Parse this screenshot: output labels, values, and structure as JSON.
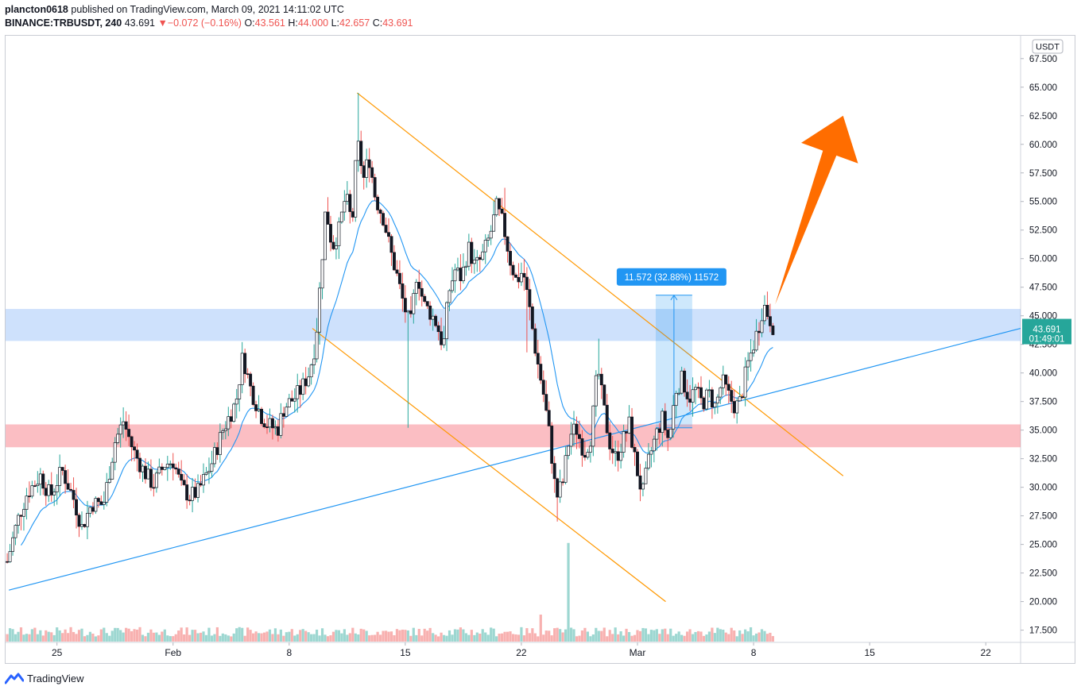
{
  "header": {
    "user": "plancton0618",
    "published": "published on TradingView.com, March 09, 2021 14:11:02 UTC",
    "symbol": "BINANCE:TRBUSDT, 240",
    "last": "43.691",
    "arrow": "▼",
    "change": "−0.072 (−0.16%)",
    "o_label": "O:",
    "o": "43.561",
    "h_label": "H:",
    "h": "44.000",
    "l_label": "L:",
    "l": "42.657",
    "c_label": "C:",
    "c": "43.691"
  },
  "footer": {
    "brand": "TradingView"
  },
  "colors": {
    "up": "#26a69a",
    "down": "#ef5350",
    "ma": "#2196f3",
    "orange": "#ff9800",
    "arrow": "#ff6d00",
    "blue_zone": "rgba(33,120,243,0.22)",
    "red_zone": "rgba(242,54,69,0.32)"
  },
  "chart_data": {
    "type": "candlestick",
    "symbol": "BINANCE:TRBUSDT",
    "interval": "240",
    "currency": "USDT",
    "y_ticks": [
      "67.500",
      "65.000",
      "62.500",
      "60.000",
      "57.500",
      "55.000",
      "52.500",
      "50.000",
      "47.500",
      "45.000",
      "42.500",
      "40.000",
      "37.500",
      "35.000",
      "32.500",
      "30.000",
      "27.500",
      "25.000",
      "22.500",
      "20.000",
      "17.500"
    ],
    "x_ticks": [
      {
        "label": "25",
        "day": 25
      },
      {
        "label": "Feb",
        "day": 32
      },
      {
        "label": "8",
        "day": 39
      },
      {
        "label": "15",
        "day": 46
      },
      {
        "label": "22",
        "day": 53
      },
      {
        "label": "Mar",
        "day": 60
      },
      {
        "label": "8",
        "day": 67
      },
      {
        "label": "15",
        "day": 74
      },
      {
        "label": "22",
        "day": 81
      }
    ],
    "ylim": [
      16.5,
      69.5
    ],
    "xlim_day": [
      21.9,
      83.1
    ],
    "price_label": {
      "value": "43.691",
      "countdown": "01:49:01",
      "y": 43.691
    },
    "measure": {
      "from_day": 61.1,
      "to_day": 63.3,
      "low": 35.2,
      "high": 46.8,
      "label": "11.572 (32.88%) 11572"
    },
    "zones": [
      {
        "name": "resistance",
        "low": 42.8,
        "high": 45.6
      },
      {
        "name": "support",
        "low": 33.5,
        "high": 35.5
      }
    ],
    "lines": [
      {
        "name": "channel-top",
        "x1": 43.1,
        "y1": 64.5,
        "x2": 72.4,
        "y2": 31.0
      },
      {
        "name": "channel-bottom",
        "x1": 40.4,
        "y1": 43.9,
        "x2": 61.7,
        "y2": 20.0
      },
      {
        "name": "trendline",
        "x1": 22.1,
        "y1": 21.0,
        "x2": 83.1,
        "y2": 43.9
      }
    ],
    "big_arrow": {
      "from_day": 68.3,
      "from_y": 46.0,
      "to_day": 72.4,
      "to_y": 62.5
    },
    "anchors": [
      {
        "d": 22.0,
        "p": 23.5
      },
      {
        "d": 22.6,
        "p": 27.0
      },
      {
        "d": 23.2,
        "p": 29.5
      },
      {
        "d": 24.0,
        "p": 31.0
      },
      {
        "d": 24.6,
        "p": 29.2
      },
      {
        "d": 25.3,
        "p": 31.5
      },
      {
        "d": 26.0,
        "p": 29.0
      },
      {
        "d": 26.5,
        "p": 26.5
      },
      {
        "d": 27.1,
        "p": 28.6
      },
      {
        "d": 27.8,
        "p": 28.5
      },
      {
        "d": 28.5,
        "p": 34.0
      },
      {
        "d": 29.0,
        "p": 35.8
      },
      {
        "d": 29.6,
        "p": 33.2
      },
      {
        "d": 30.2,
        "p": 31.5
      },
      {
        "d": 30.8,
        "p": 30.2
      },
      {
        "d": 31.5,
        "p": 32.0
      },
      {
        "d": 32.0,
        "p": 32.3
      },
      {
        "d": 32.5,
        "p": 30.0
      },
      {
        "d": 33.0,
        "p": 29.2
      },
      {
        "d": 33.5,
        "p": 29.6
      },
      {
        "d": 34.3,
        "p": 32.0
      },
      {
        "d": 35.0,
        "p": 35.0
      },
      {
        "d": 35.8,
        "p": 37.5
      },
      {
        "d": 36.2,
        "p": 41.5
      },
      {
        "d": 36.7,
        "p": 38.5
      },
      {
        "d": 37.3,
        "p": 36.3
      },
      {
        "d": 37.7,
        "p": 35.5
      },
      {
        "d": 38.3,
        "p": 35.0
      },
      {
        "d": 38.7,
        "p": 37.0
      },
      {
        "d": 39.3,
        "p": 37.8
      },
      {
        "d": 39.7,
        "p": 38.5
      },
      {
        "d": 40.2,
        "p": 40.0
      },
      {
        "d": 40.6,
        "p": 42.7
      },
      {
        "d": 40.9,
        "p": 48.5
      },
      {
        "d": 41.2,
        "p": 54.5
      },
      {
        "d": 41.6,
        "p": 51.0
      },
      {
        "d": 42.0,
        "p": 52.5
      },
      {
        "d": 42.4,
        "p": 55.5
      },
      {
        "d": 42.8,
        "p": 53.0
      },
      {
        "d": 43.1,
        "p": 60.3
      },
      {
        "d": 43.5,
        "p": 57.0
      },
      {
        "d": 43.8,
        "p": 59.0
      },
      {
        "d": 44.2,
        "p": 55.3
      },
      {
        "d": 44.7,
        "p": 53.5
      },
      {
        "d": 45.1,
        "p": 50.7
      },
      {
        "d": 45.5,
        "p": 48.5
      },
      {
        "d": 45.9,
        "p": 46.0
      },
      {
        "d": 46.3,
        "p": 44.0
      },
      {
        "d": 46.7,
        "p": 49.0
      },
      {
        "d": 47.1,
        "p": 46.0
      },
      {
        "d": 47.5,
        "p": 45.3
      },
      {
        "d": 47.9,
        "p": 44.3
      },
      {
        "d": 48.3,
        "p": 42.2
      },
      {
        "d": 48.6,
        "p": 47.0
      },
      {
        "d": 49.0,
        "p": 49.0
      },
      {
        "d": 49.4,
        "p": 48.3
      },
      {
        "d": 49.8,
        "p": 51.0
      },
      {
        "d": 50.2,
        "p": 49.3
      },
      {
        "d": 50.6,
        "p": 50.0
      },
      {
        "d": 51.1,
        "p": 52.0
      },
      {
        "d": 51.5,
        "p": 54.5
      },
      {
        "d": 51.9,
        "p": 53.0
      },
      {
        "d": 52.3,
        "p": 50.0
      },
      {
        "d": 52.7,
        "p": 48.0
      },
      {
        "d": 53.1,
        "p": 49.0
      },
      {
        "d": 53.5,
        "p": 45.5
      },
      {
        "d": 53.9,
        "p": 41.5
      },
      {
        "d": 54.3,
        "p": 38.5
      },
      {
        "d": 54.7,
        "p": 34.5
      },
      {
        "d": 55.1,
        "p": 29.0
      },
      {
        "d": 55.5,
        "p": 30.5
      },
      {
        "d": 55.9,
        "p": 34.5
      },
      {
        "d": 56.3,
        "p": 35.2
      },
      {
        "d": 56.8,
        "p": 33.0
      },
      {
        "d": 57.2,
        "p": 34.5
      },
      {
        "d": 57.6,
        "p": 40.5
      },
      {
        "d": 57.9,
        "p": 37.5
      },
      {
        "d": 58.3,
        "p": 34.0
      },
      {
        "d": 58.7,
        "p": 32.5
      },
      {
        "d": 59.1,
        "p": 34.0
      },
      {
        "d": 59.5,
        "p": 35.5
      },
      {
        "d": 59.9,
        "p": 32.0
      },
      {
        "d": 60.3,
        "p": 29.3
      },
      {
        "d": 60.7,
        "p": 32.5
      },
      {
        "d": 61.1,
        "p": 34.5
      },
      {
        "d": 61.5,
        "p": 36.0
      },
      {
        "d": 61.9,
        "p": 34.0
      },
      {
        "d": 62.3,
        "p": 38.5
      },
      {
        "d": 62.7,
        "p": 39.5
      },
      {
        "d": 63.1,
        "p": 37.8
      },
      {
        "d": 63.5,
        "p": 38.5
      },
      {
        "d": 63.9,
        "p": 37.3
      },
      {
        "d": 64.3,
        "p": 38.2
      },
      {
        "d": 64.7,
        "p": 37.0
      },
      {
        "d": 65.1,
        "p": 39.3
      },
      {
        "d": 65.5,
        "p": 38.0
      },
      {
        "d": 65.9,
        "p": 37.0
      },
      {
        "d": 66.2,
        "p": 37.5
      },
      {
        "d": 66.6,
        "p": 40.5
      },
      {
        "d": 67.0,
        "p": 42.5
      },
      {
        "d": 67.3,
        "p": 44.0
      },
      {
        "d": 67.6,
        "p": 46.0
      },
      {
        "d": 67.9,
        "p": 45.0
      },
      {
        "d": 68.3,
        "p": 43.7
      }
    ],
    "volume_spikes": [
      {
        "d": 54.2,
        "v": 2.6
      },
      {
        "d": 55.8,
        "v": 9.5
      }
    ]
  }
}
